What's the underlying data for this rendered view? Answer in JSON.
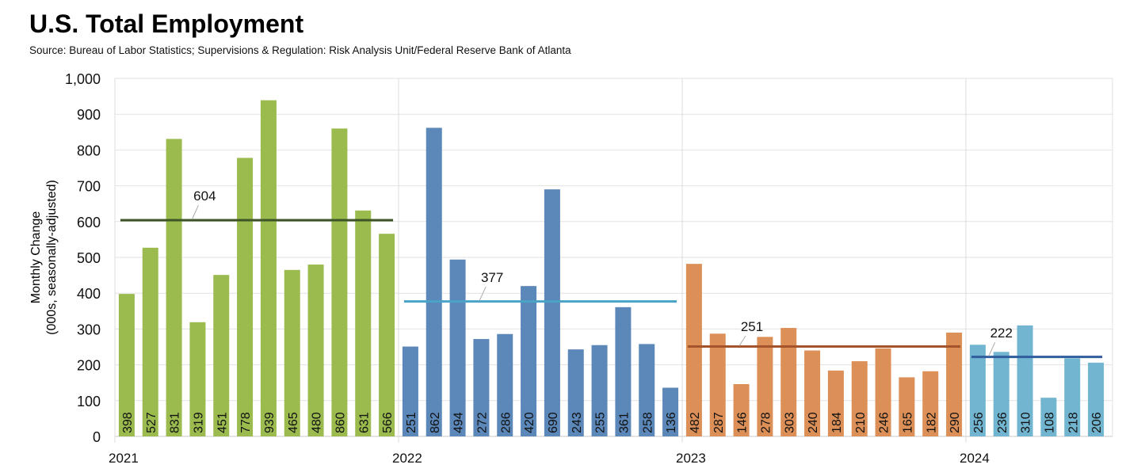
{
  "chart_data": {
    "type": "bar",
    "title": "U.S. Total Employment",
    "subtitle": "Source: Bureau of Labor Statistics; Supervisions & Regulation: Risk Analysis Unit/Federal Reserve Bank of Atlanta",
    "xlabel": "",
    "ylabel_lines": [
      "Monthly Change",
      "(000s, seasonally-adjusted)"
    ],
    "ylim": [
      0,
      1000
    ],
    "yticks": [
      "0",
      "100",
      "200",
      "300",
      "400",
      "500",
      "600",
      "700",
      "800",
      "900",
      "1,000"
    ],
    "grid": true,
    "series": [
      {
        "name": "2021",
        "color": "#9bbb4f",
        "avg": 604,
        "avg_color": "#3d5426",
        "values": [
          398,
          527,
          831,
          319,
          451,
          778,
          939,
          465,
          480,
          860,
          631,
          566
        ]
      },
      {
        "name": "2022",
        "color": "#5b87b9",
        "avg": 377,
        "avg_color": "#4aa3c6",
        "values": [
          251,
          862,
          494,
          272,
          286,
          420,
          690,
          243,
          255,
          361,
          258,
          136
        ]
      },
      {
        "name": "2023",
        "color": "#dc9058",
        "avg": 251,
        "avg_color": "#a4532b",
        "values": [
          482,
          287,
          146,
          278,
          303,
          240,
          184,
          210,
          246,
          165,
          182,
          290
        ]
      },
      {
        "name": "2024",
        "color": "#72b5d0",
        "avg": 222,
        "avg_color": "#2f5d9e",
        "values": [
          256,
          236,
          310,
          108,
          218,
          206
        ]
      }
    ]
  }
}
